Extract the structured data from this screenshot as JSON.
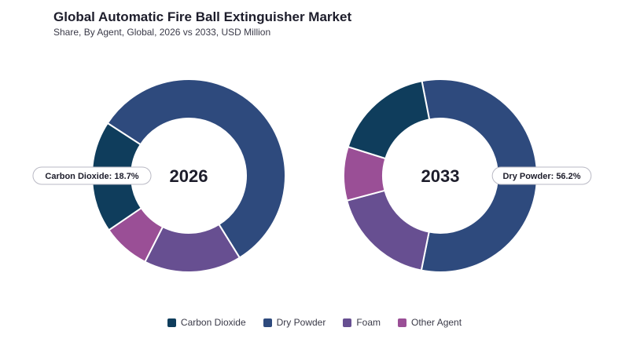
{
  "title": "Global Automatic Fire Ball Extinguisher Market",
  "subtitle": "Share, By Agent, Global, 2026 vs 2033, USD Million",
  "chart_data": {
    "type": "pie",
    "donut": true,
    "categories": [
      "Carbon Dioxide",
      "Dry Powder",
      "Foam",
      "Other Agent"
    ],
    "colors": [
      "#0f3d5c",
      "#2e4a7d",
      "#674f91",
      "#9a4f96"
    ],
    "series": [
      {
        "name": "2026",
        "values": [
          18.7,
          57.0,
          16.3,
          8.0
        ],
        "callout": {
          "text": "Carbon Dioxide: 18.7%",
          "category": "Carbon Dioxide",
          "side": "left"
        }
      },
      {
        "name": "2033",
        "values": [
          17.1,
          56.2,
          17.7,
          9.0
        ],
        "callout": {
          "text": "Dry Powder: 56.2%",
          "category": "Dry Powder",
          "side": "right"
        }
      }
    ],
    "legend_position": "bottom-center"
  }
}
